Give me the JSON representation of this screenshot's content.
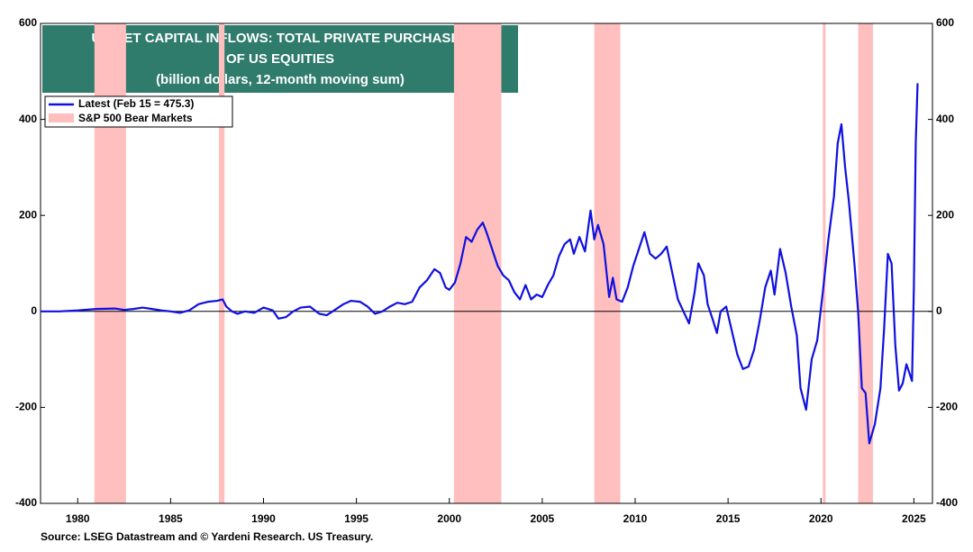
{
  "chart_data": {
    "type": "line",
    "title": [
      "US NET CAPITAL INFLOWS: TOTAL PRIVATE PURCHASES",
      "OF US EQUITIES",
      "(billion dollars, 12-month moving sum)"
    ],
    "source": "Source: LSEG Datastream and © Yardeni Research. US Treasury.",
    "xlim": [
      1978,
      2026
    ],
    "xticks": [
      1980,
      1985,
      1990,
      1995,
      2000,
      2005,
      2010,
      2015,
      2020,
      2025
    ],
    "ylim": [
      -400,
      600
    ],
    "yticks": [
      -400,
      -200,
      0,
      200,
      400,
      600
    ],
    "y2lim": [
      -400,
      600
    ],
    "y2ticks": [
      -400,
      -200,
      0,
      200,
      400,
      600
    ],
    "x": [
      1978.0,
      1979,
      1980,
      1981,
      1982,
      1982.5,
      1983,
      1983.5,
      1984,
      1984.5,
      1985,
      1985.5,
      1986,
      1986.5,
      1987,
      1987.5,
      1987.8,
      1988,
      1988.3,
      1988.6,
      1989,
      1989.5,
      1990,
      1990.5,
      1990.8,
      1991.2,
      1991.6,
      1992,
      1992.5,
      1993,
      1993.4,
      1993.8,
      1994.3,
      1994.7,
      1995.2,
      1995.6,
      1996,
      1996.4,
      1996.8,
      1997.2,
      1997.6,
      1998,
      1998.4,
      1998.8,
      1999.2,
      1999.5,
      1999.8,
      2000,
      2000.3,
      2000.6,
      2000.9,
      2001.2,
      2001.5,
      2001.8,
      2002.0,
      2002.3,
      2002.6,
      2002.9,
      2003.2,
      2003.5,
      2003.8,
      2004.1,
      2004.4,
      2004.7,
      2005,
      2005.3,
      2005.6,
      2005.9,
      2006.2,
      2006.5,
      2006.7,
      2007.0,
      2007.3,
      2007.6,
      2007.8,
      2008.0,
      2008.3,
      2008.6,
      2008.8,
      2009.0,
      2009.3,
      2009.6,
      2009.9,
      2010.2,
      2010.5,
      2010.8,
      2011.1,
      2011.4,
      2011.7,
      2012.0,
      2012.3,
      2012.6,
      2012.9,
      2013.2,
      2013.4,
      2013.7,
      2013.9,
      2014.2,
      2014.4,
      2014.6,
      2014.9,
      2015.2,
      2015.5,
      2015.8,
      2016.1,
      2016.4,
      2016.7,
      2017.0,
      2017.3,
      2017.5,
      2017.8,
      2018.1,
      2018.4,
      2018.7,
      2018.9,
      2019.2,
      2019.5,
      2019.8,
      2020.1,
      2020.4,
      2020.7,
      2020.9,
      2021.1,
      2021.3,
      2021.5,
      2021.8,
      2022.0,
      2022.2,
      2022.4,
      2022.6,
      2022.9,
      2023.2,
      2023.4,
      2023.6,
      2023.8,
      2024.0,
      2024.2,
      2024.4,
      2024.6,
      2024.9,
      2025.0,
      2025.1,
      2025.2
    ],
    "series": [
      {
        "name": "Latest (Feb 15 = 475.3)",
        "color": "#1010e0",
        "values": [
          0,
          0,
          2,
          5,
          6,
          3,
          5,
          8,
          5,
          2,
          0,
          -3,
          2,
          15,
          20,
          22,
          25,
          10,
          0,
          -5,
          0,
          -3,
          8,
          2,
          -15,
          -12,
          0,
          8,
          10,
          -5,
          -8,
          2,
          15,
          22,
          20,
          10,
          -5,
          0,
          10,
          18,
          15,
          20,
          50,
          65,
          88,
          80,
          50,
          45,
          60,
          100,
          155,
          145,
          170,
          185,
          165,
          130,
          95,
          75,
          65,
          40,
          25,
          55,
          25,
          35,
          30,
          55,
          75,
          115,
          140,
          150,
          120,
          155,
          125,
          210,
          150,
          180,
          140,
          30,
          70,
          25,
          20,
          50,
          95,
          130,
          165,
          120,
          110,
          120,
          135,
          80,
          25,
          0,
          -25,
          40,
          100,
          75,
          15,
          -20,
          -45,
          0,
          10,
          -40,
          -90,
          -120,
          -115,
          -80,
          -20,
          50,
          85,
          35,
          130,
          80,
          10,
          -50,
          -160,
          -205,
          -100,
          -60,
          40,
          150,
          240,
          350,
          390,
          300,
          230,
          100,
          0,
          -160,
          -170,
          -275,
          -235,
          -160,
          -35,
          120,
          100,
          -70,
          -165,
          -150,
          -110,
          -145,
          50,
          350,
          475.3
        ]
      }
    ],
    "shaded": {
      "name": "S&P 500 Bear Markets",
      "color": "#ffbfbf",
      "spans": [
        [
          1980.9,
          1982.6
        ],
        [
          1987.6,
          1987.9
        ],
        [
          2000.25,
          2002.8
        ],
        [
          2007.8,
          2009.2
        ],
        [
          2020.1,
          2020.25
        ],
        [
          2022.0,
          2022.8
        ]
      ]
    }
  }
}
